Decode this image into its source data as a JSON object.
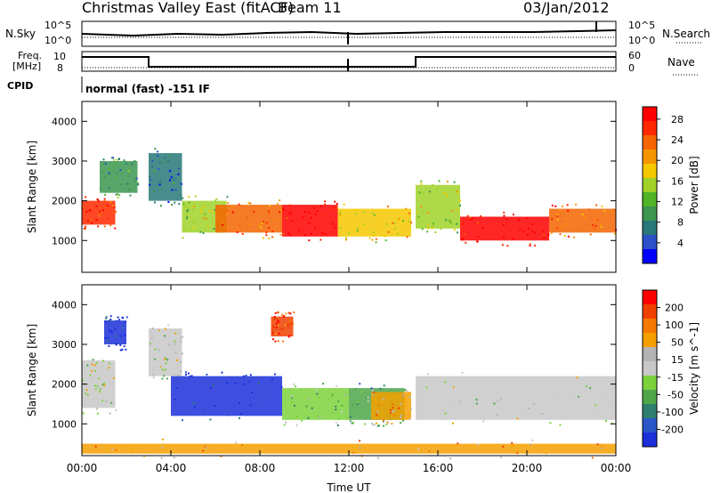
{
  "header": {
    "title": "Christmas Valley East (fitACF)",
    "beam": "Beam 11",
    "date": "03/Jan/2012"
  },
  "status_panels": {
    "nsky": {
      "label": "N.Sky",
      "tick_top": "10^5",
      "tick_bottom": "10^0"
    },
    "nsearch": {
      "label": "N.Search",
      "tick_top": "10^5",
      "tick_bottom": "10^0"
    },
    "freq": {
      "label_line1": "Freq.",
      "label_line2": "[MHz]",
      "tick_top": "10",
      "tick_bottom": "8",
      "steps": [
        {
          "t": 0,
          "v": 10
        },
        {
          "t": 3,
          "v": 8
        },
        {
          "t": 15,
          "v": 10
        },
        {
          "t": 24,
          "v": 10
        }
      ]
    },
    "nave": {
      "label": "Nave",
      "tick_top": "60",
      "tick_bottom": "0"
    },
    "cpid": {
      "label": "CPID",
      "text": "normal (fast) -151 IF"
    }
  },
  "colors": {
    "power": [
      "#0000ff",
      "#2c50c8",
      "#287878",
      "#3c9650",
      "#50b428",
      "#a0d228",
      "#f5c800",
      "#f59600",
      "#f56400",
      "#ff2800",
      "#ff0000"
    ],
    "velocity": [
      "#1c2fd9",
      "#2a56c8",
      "#2e7f6e",
      "#4fa64a",
      "#7cd23c",
      "#c8c8c8",
      "#b4b4b4",
      "#f5a000",
      "#f57800",
      "#f04000",
      "#ff0000"
    ]
  },
  "chart_data": [
    {
      "type": "heatmap",
      "title": "Power",
      "ylabel": "Slant Range [km]",
      "colorbar_label": "Power [dB]",
      "colorbar_ticks": [
        "4",
        "8",
        "12",
        "16",
        "20",
        "24",
        "28"
      ],
      "x_ticks": [
        "00:00",
        "04:00",
        "08:00",
        "12:00",
        "16:00",
        "20:00",
        "00:00"
      ],
      "y_ticks": [
        "1000",
        "2000",
        "3000",
        "4000"
      ],
      "xlim": [
        0,
        24
      ],
      "ylim": [
        200,
        4500
      ],
      "regions": [
        {
          "t0": 0,
          "t1": 1.5,
          "r0": 1400,
          "r1": 2000,
          "level": 9
        },
        {
          "t0": 0.8,
          "t1": 2.5,
          "r0": 2200,
          "r1": 3000,
          "level": 3
        },
        {
          "t0": 3.0,
          "t1": 4.5,
          "r0": 2000,
          "r1": 3200,
          "level": 2
        },
        {
          "t0": 4.5,
          "t1": 6.5,
          "r0": 1200,
          "r1": 2000,
          "level": 5
        },
        {
          "t0": 6.0,
          "t1": 9.0,
          "r0": 1200,
          "r1": 1900,
          "level": 8
        },
        {
          "t0": 9.0,
          "t1": 11.5,
          "r0": 1100,
          "r1": 1900,
          "level": 10
        },
        {
          "t0": 11.5,
          "t1": 14.8,
          "r0": 1100,
          "r1": 1800,
          "level": 6
        },
        {
          "t0": 15.0,
          "t1": 17.0,
          "r0": 1300,
          "r1": 2400,
          "level": 5
        },
        {
          "t0": 17.0,
          "t1": 21.0,
          "r0": 1000,
          "r1": 1600,
          "level": 10
        },
        {
          "t0": 21.0,
          "t1": 24.0,
          "r0": 1200,
          "r1": 1800,
          "level": 8
        }
      ]
    },
    {
      "type": "heatmap",
      "title": "Velocity",
      "ylabel": "Slant Range [km]",
      "xlabel": "Time UT",
      "colorbar_label": "Velocity [m s^-1]",
      "colorbar_ticks": [
        "200",
        "100",
        "50",
        "15",
        "-15",
        "-50",
        "-100",
        "-200"
      ],
      "x_ticks": [
        "00:00",
        "04:00",
        "08:00",
        "12:00",
        "16:00",
        "20:00",
        "00:00"
      ],
      "y_ticks": [
        "1000",
        "2000",
        "3000",
        "4000"
      ],
      "xlim": [
        0,
        24
      ],
      "ylim": [
        200,
        4500
      ],
      "regions": [
        {
          "t0": 0,
          "t1": 1.5,
          "r0": 1400,
          "r1": 2600,
          "level": 5
        },
        {
          "t0": 1.0,
          "t1": 2.0,
          "r0": 3000,
          "r1": 3600,
          "level": 0
        },
        {
          "t0": 3.0,
          "t1": 4.5,
          "r0": 2200,
          "r1": 3400,
          "level": 5
        },
        {
          "t0": 4.0,
          "t1": 9.0,
          "r0": 1200,
          "r1": 2200,
          "level": 0
        },
        {
          "t0": 8.5,
          "t1": 9.5,
          "r0": 3200,
          "r1": 3700,
          "level": 9
        },
        {
          "t0": 9.0,
          "t1": 12.0,
          "r0": 1100,
          "r1": 1900,
          "level": 4
        },
        {
          "t0": 12.0,
          "t1": 14.5,
          "r0": 1100,
          "r1": 1900,
          "level": 3
        },
        {
          "t0": 13.0,
          "t1": 14.8,
          "r0": 1100,
          "r1": 1800,
          "level": 7
        },
        {
          "t0": 15.0,
          "t1": 24.0,
          "r0": 1100,
          "r1": 2200,
          "level": 5
        },
        {
          "t0": 0,
          "t1": 24,
          "r0": 250,
          "r1": 500,
          "level": 7
        }
      ]
    }
  ]
}
